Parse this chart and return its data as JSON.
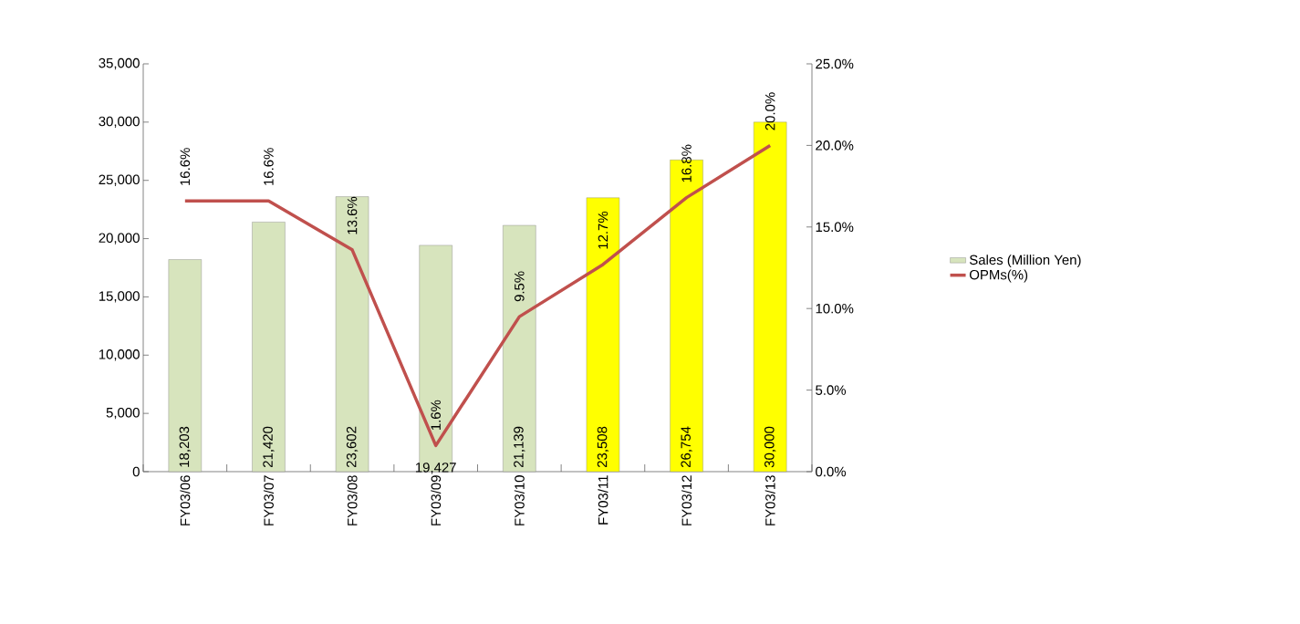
{
  "chart_data": {
    "type": "bar",
    "categories": [
      "FY03/06",
      "FY03/07",
      "FY03/08",
      "FY03/09",
      "FY03/10",
      "FY03/11",
      "FY03/12",
      "FY03/13"
    ],
    "series": [
      {
        "name": "Sales (Million Yen)",
        "colors": [
          "#d7e4bd",
          "#d7e4bd",
          "#d7e4bd",
          "#d7e4bd",
          "#d7e4bd",
          "#ffff00",
          "#ffff00",
          "#ffff00"
        ],
        "values": [
          18203,
          21420,
          23602,
          19427,
          21139,
          23508,
          26754,
          30000
        ],
        "value_labels": [
          "18,203",
          "21,420",
          "23,602",
          "19,427",
          "21,139",
          "23,508",
          "26,754",
          "30,000"
        ]
      },
      {
        "name": "OPMs(%)",
        "type": "line",
        "axis": "y2",
        "color": "#c0504d",
        "values": [
          16.6,
          16.6,
          13.6,
          1.6,
          9.5,
          12.7,
          16.8,
          20.0
        ],
        "value_labels": [
          "16.6%",
          "16.6%",
          "13.6%",
          "1.6%",
          "9.5%",
          "12.7%",
          "16.8%",
          "20.0%"
        ]
      }
    ],
    "ylim": [
      0,
      35000
    ],
    "yticks": [
      {
        "value": 0,
        "label": "0"
      },
      {
        "value": 5000,
        "label": "5,000"
      },
      {
        "value": 10000,
        "label": "10,000"
      },
      {
        "value": 15000,
        "label": "15,000"
      },
      {
        "value": 20000,
        "label": "20,000"
      },
      {
        "value": 25000,
        "label": "25,000"
      },
      {
        "value": 30000,
        "label": "30,000"
      },
      {
        "value": 35000,
        "label": "35,000"
      }
    ],
    "y2lim": [
      0,
      25
    ],
    "y2ticks": [
      {
        "value": 0,
        "label": "0.0%"
      },
      {
        "value": 5,
        "label": "5.0%"
      },
      {
        "value": 10,
        "label": "10.0%"
      },
      {
        "value": 15,
        "label": "15.0%"
      },
      {
        "value": 20,
        "label": "20.0%"
      },
      {
        "value": 25,
        "label": "25.0%"
      }
    ],
    "legend": "right",
    "grid": false
  }
}
